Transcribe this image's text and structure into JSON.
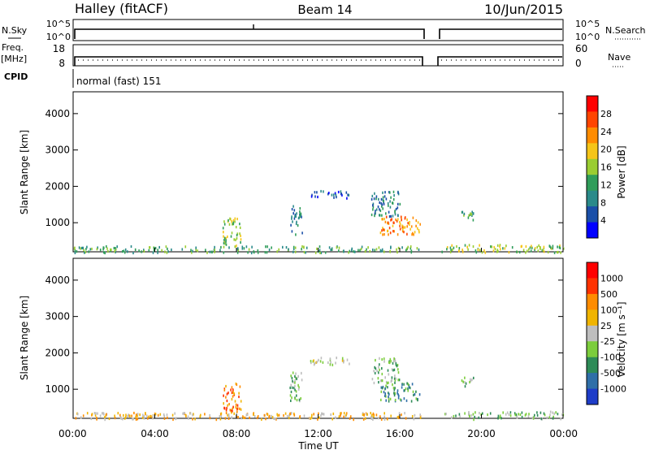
{
  "header": {
    "station": "Halley (fitACF)",
    "beam": "Beam 14",
    "date": "10/Jun/2015"
  },
  "panel_labels": {
    "nsky": "N.Sky",
    "nsearch": "N.Search",
    "freq": "Freq.",
    "mhz": "[MHz]",
    "nave": "Nave",
    "cpid": "CPID",
    "cpid_value": "normal (fast) 151"
  },
  "small_ticks": {
    "nsky_left": [
      "10^5",
      "10^0"
    ],
    "nsky_right": [
      "10^5",
      "10^0"
    ],
    "freq_left": [
      "18",
      "8"
    ],
    "nave_right": [
      "60",
      "0"
    ]
  },
  "colorbars": {
    "power": {
      "label": "Power [dB]",
      "ticks": [
        "28",
        "24",
        "20",
        "16",
        "12",
        "8",
        "4"
      ],
      "colors": [
        "#0000ff",
        "#1a4fa8",
        "#2a8a8a",
        "#2f9d5a",
        "#9acd32",
        "#f5c518",
        "#ff8c00",
        "#ff4500",
        "#ff0000"
      ]
    },
    "velocity": {
      "label": "Velocity [m s⁻¹]",
      "ticks": [
        "1000",
        "500",
        "100",
        "25",
        "-25",
        "-100",
        "-500",
        "-1000"
      ],
      "colors": [
        "#1e3cc8",
        "#2f6fa8",
        "#2e8b57",
        "#7ccd3c",
        "#bebebe",
        "#f0b400",
        "#ff8c00",
        "#ff3200",
        "#ff0000"
      ]
    }
  },
  "chart_data": [
    {
      "type": "heatmap",
      "name_ref": "power",
      "xlabel": "",
      "ylabel": "Slant Range [km]",
      "xlim": [
        0,
        24
      ],
      "ylim": [
        200,
        4600
      ],
      "yticks": [
        "1000",
        "2000",
        "3000",
        "4000"
      ],
      "data_gap_hours": [
        17.1,
        18.0
      ],
      "regions": [
        {
          "x": [
            0,
            17.1
          ],
          "y": [
            200,
            380
          ],
          "level": 3
        },
        {
          "x": [
            7.3,
            8.2
          ],
          "y": [
            380,
            1150
          ],
          "level": 4
        },
        {
          "x": [
            10.6,
            11.2
          ],
          "y": [
            700,
            1500
          ],
          "level": 2
        },
        {
          "x": [
            11.6,
            13.5
          ],
          "y": [
            1700,
            1900
          ],
          "level": 1
        },
        {
          "x": [
            14.6,
            16.0
          ],
          "y": [
            1200,
            1900
          ],
          "level": 2
        },
        {
          "x": [
            15.0,
            17.0
          ],
          "y": [
            700,
            1200
          ],
          "level": 6
        },
        {
          "x": [
            19.0,
            19.6
          ],
          "y": [
            1100,
            1350
          ],
          "level": 3
        },
        {
          "x": [
            18.0,
            24.0
          ],
          "y": [
            200,
            420
          ],
          "level": 4
        }
      ]
    },
    {
      "type": "heatmap",
      "name_ref": "velocity",
      "xlabel": "Time UT",
      "ylabel": "Slant Range [km]",
      "xlim": [
        0,
        24
      ],
      "ylim": [
        200,
        4600
      ],
      "xticks": [
        "00:00",
        "04:00",
        "08:00",
        "12:00",
        "16:00",
        "20:00",
        "00:00"
      ],
      "yticks": [
        "1000",
        "2000",
        "3000",
        "4000"
      ],
      "data_gap_hours": [
        17.1,
        18.0
      ],
      "regions": [
        {
          "x": [
            0,
            17.1
          ],
          "y": [
            200,
            380
          ],
          "level": 5
        },
        {
          "x": [
            7.3,
            8.2
          ],
          "y": [
            380,
            1200
          ],
          "level": 6
        },
        {
          "x": [
            10.6,
            11.2
          ],
          "y": [
            700,
            1500
          ],
          "level": 3
        },
        {
          "x": [
            11.6,
            13.5
          ],
          "y": [
            1700,
            1900
          ],
          "level": 4
        },
        {
          "x": [
            14.6,
            16.0
          ],
          "y": [
            1200,
            1900
          ],
          "level": 3
        },
        {
          "x": [
            15.0,
            17.0
          ],
          "y": [
            700,
            1200
          ],
          "level": 2
        },
        {
          "x": [
            19.0,
            19.6
          ],
          "y": [
            1100,
            1350
          ],
          "level": 3
        },
        {
          "x": [
            18.0,
            24.0
          ],
          "y": [
            200,
            420
          ],
          "level": 3
        }
      ]
    }
  ]
}
